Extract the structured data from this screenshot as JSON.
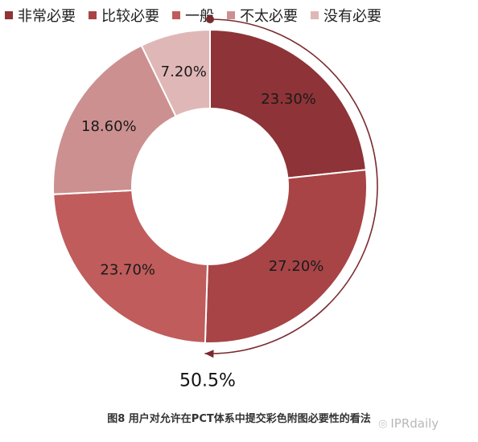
{
  "colors": {
    "series": [
      "#8e3337",
      "#a84446",
      "#c05c5c",
      "#cc9090",
      "#e0b7b7"
    ],
    "arc": "#7a2a2e",
    "label_text": "#1a1a1a"
  },
  "chart_data": {
    "type": "pie",
    "variant": "donut",
    "categories": [
      "非常必要",
      "比较必要",
      "一般",
      "不太必要",
      "没有必要"
    ],
    "values": [
      23.3,
      27.2,
      23.7,
      18.6,
      7.2
    ],
    "data_labels": [
      "23.30%",
      "27.20%",
      "23.70%",
      "18.60%",
      "7.20%"
    ],
    "legend_position": "top",
    "annotation": "50.5%"
  },
  "caption": "图8 用户对允许在PCT体系中提交彩色附图必要性的看法",
  "watermark": {
    "text": "IPRdaily",
    "icon": "wechat-icon"
  }
}
